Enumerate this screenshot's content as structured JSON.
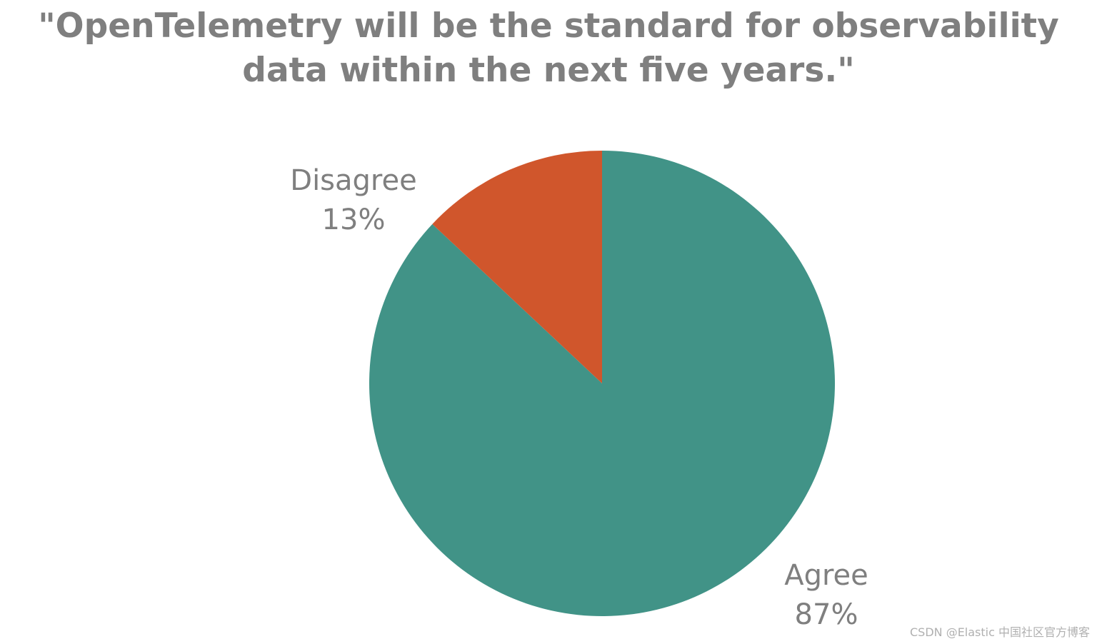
{
  "chart_data": {
    "type": "pie",
    "title": "\"OpenTelemetry will be the standard for observability data within the next five years.\"",
    "categories": [
      "Agree",
      "Disagree"
    ],
    "values": [
      87,
      13
    ],
    "value_labels": [
      "87%",
      "13%"
    ],
    "colors": [
      "#419387",
      "#d0562c"
    ],
    "watermark": "CSDN @Elastic 中国社区官方博客"
  }
}
